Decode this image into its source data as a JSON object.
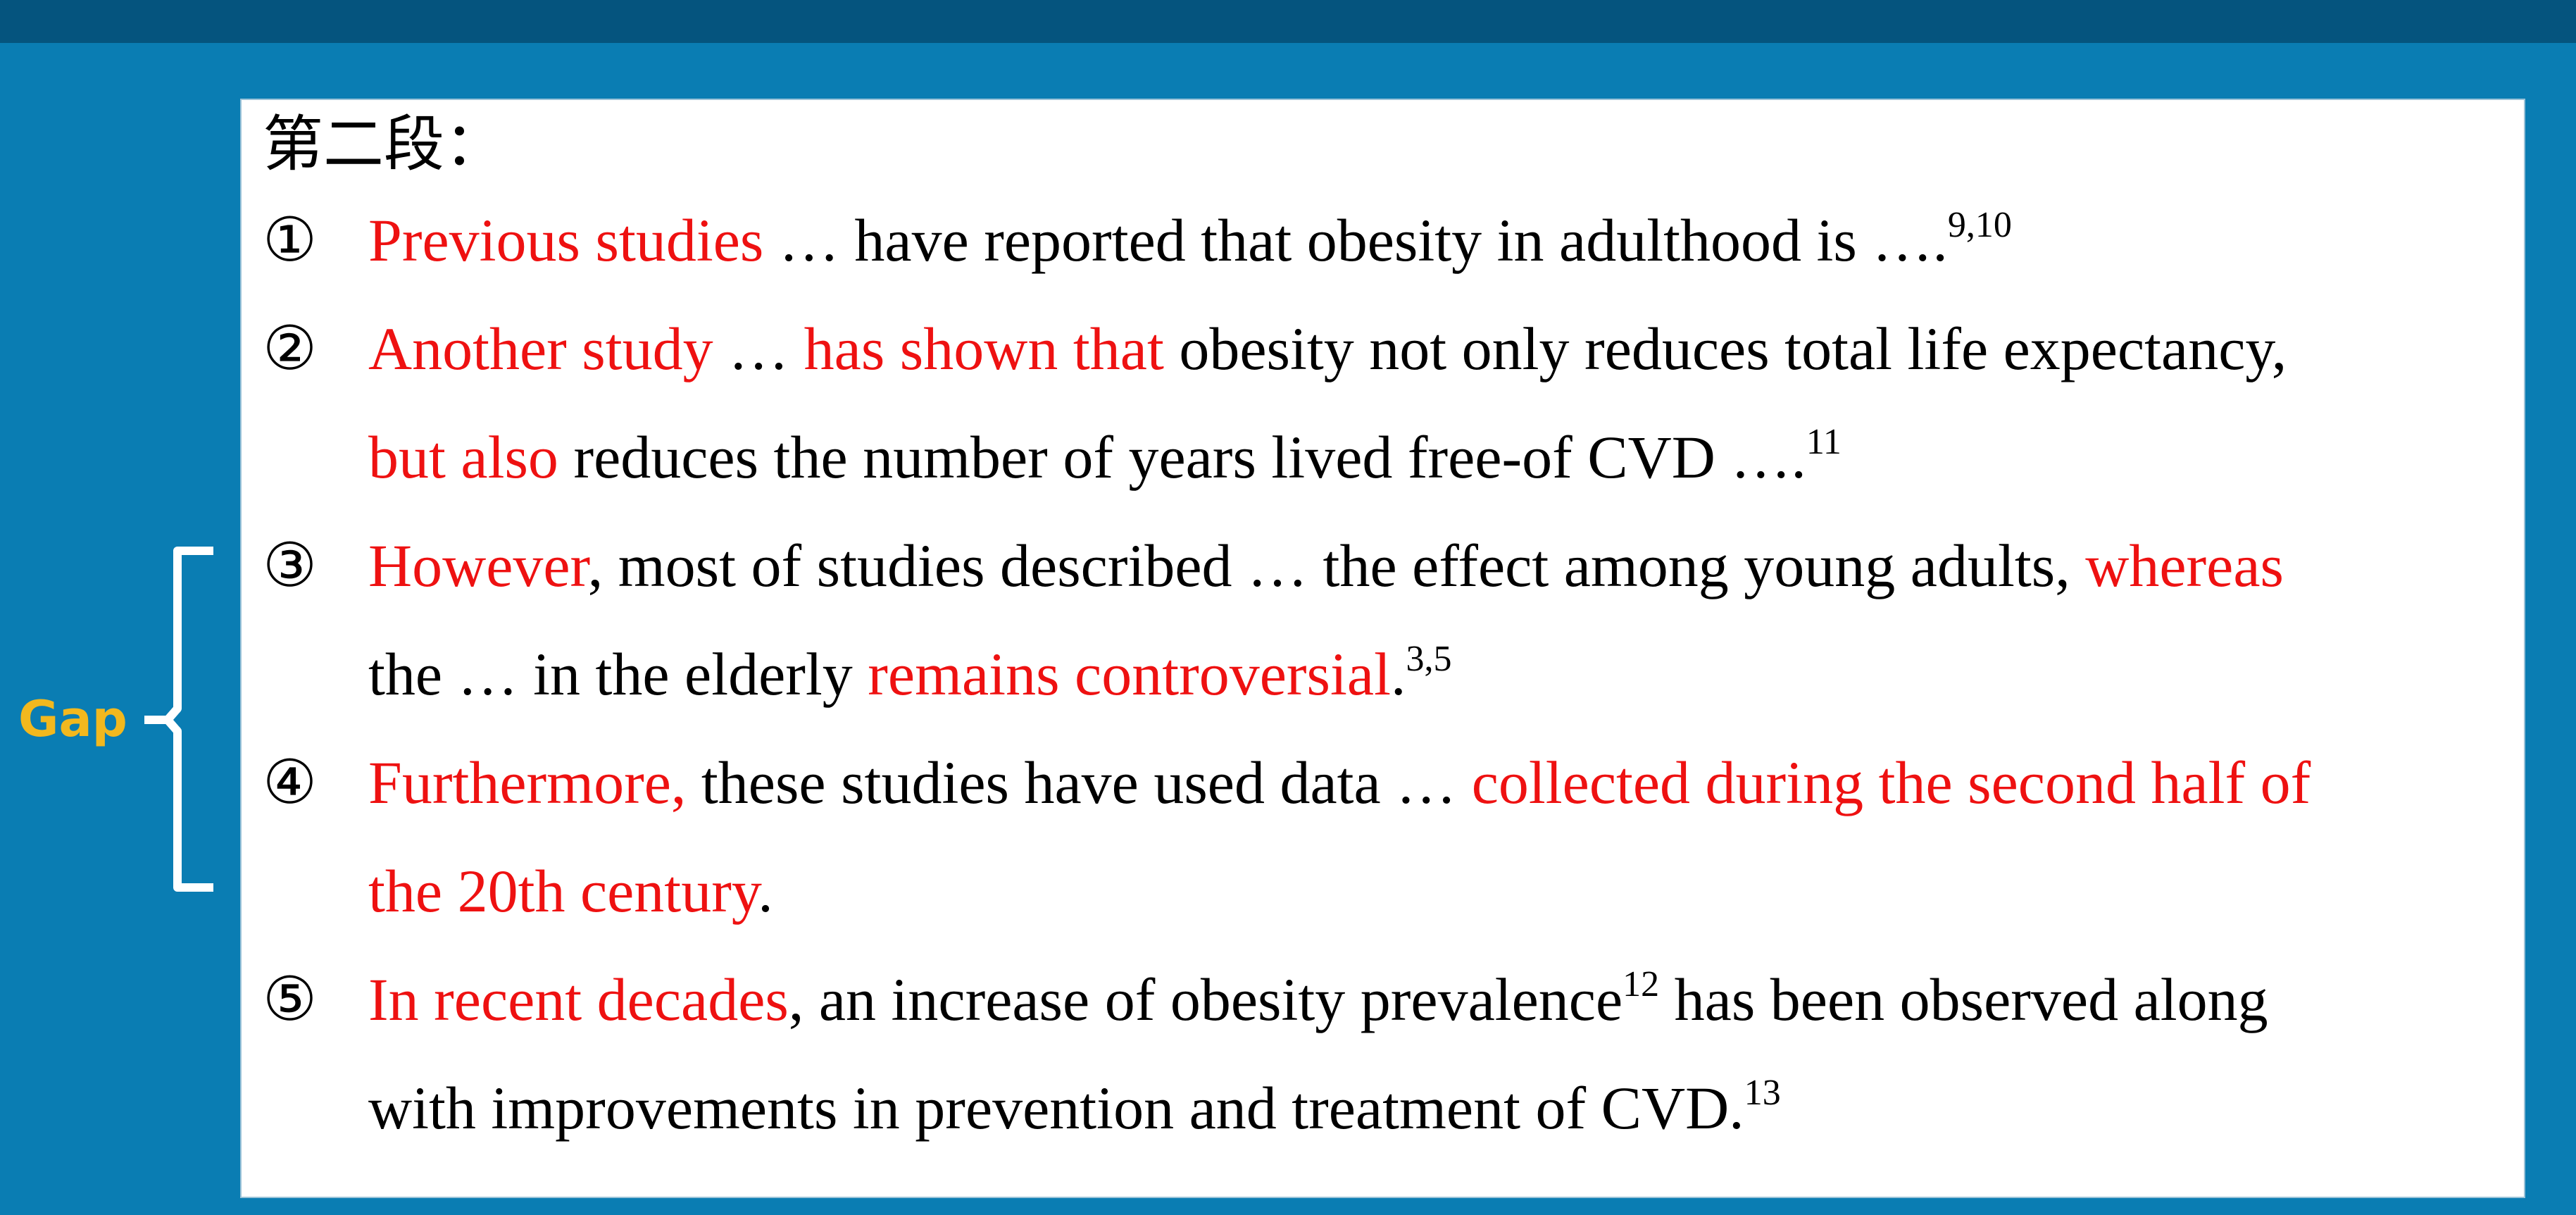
{
  "header": {
    "title": "第二段："
  },
  "gap": {
    "label": "Gap"
  },
  "items": [
    {
      "number": "①",
      "lines": [
        [
          {
            "text": "Previous studies",
            "color": "red"
          },
          {
            "text": " … have reported that obesity in adulthood is …."
          },
          {
            "text": "9,10",
            "sup": true
          }
        ]
      ]
    },
    {
      "number": "②",
      "lines": [
        [
          {
            "text": "Another study",
            "color": "red"
          },
          {
            "text": " … "
          },
          {
            "text": "has shown that",
            "color": "red"
          },
          {
            "text": " obesity not only reduces total life expectancy,"
          }
        ],
        [
          {
            "text": "but also",
            "color": "red"
          },
          {
            "text": " reduces the number of years lived free-of CVD …."
          },
          {
            "text": "11",
            "sup": true
          }
        ]
      ]
    },
    {
      "number": "③",
      "lines": [
        [
          {
            "text": "However",
            "color": "red"
          },
          {
            "text": ", most of studies described … the effect among young adults, "
          },
          {
            "text": "whereas",
            "color": "red"
          }
        ],
        [
          {
            "text": "the … in the elderly "
          },
          {
            "text": "remains controversial",
            "color": "red"
          },
          {
            "text": "."
          },
          {
            "text": "3,5",
            "sup": true
          }
        ]
      ]
    },
    {
      "number": "④",
      "lines": [
        [
          {
            "text": "Furthermore,",
            "color": "red"
          },
          {
            "text": " these studies have used data … "
          },
          {
            "text": "collected during the second half of",
            "color": "red"
          }
        ],
        [
          {
            "text": "the 20th century",
            "color": "red"
          },
          {
            "text": "."
          }
        ]
      ]
    },
    {
      "number": "⑤",
      "lines": [
        [
          {
            "text": "In recent decades",
            "color": "red"
          },
          {
            "text": ", an increase of obesity prevalence"
          },
          {
            "text": "12",
            "sup": true
          },
          {
            "text": " has been observed along"
          }
        ],
        [
          {
            "text": "with improvements in prevention and treatment of CVD."
          },
          {
            "text": "13",
            "sup": true
          }
        ]
      ]
    }
  ]
}
